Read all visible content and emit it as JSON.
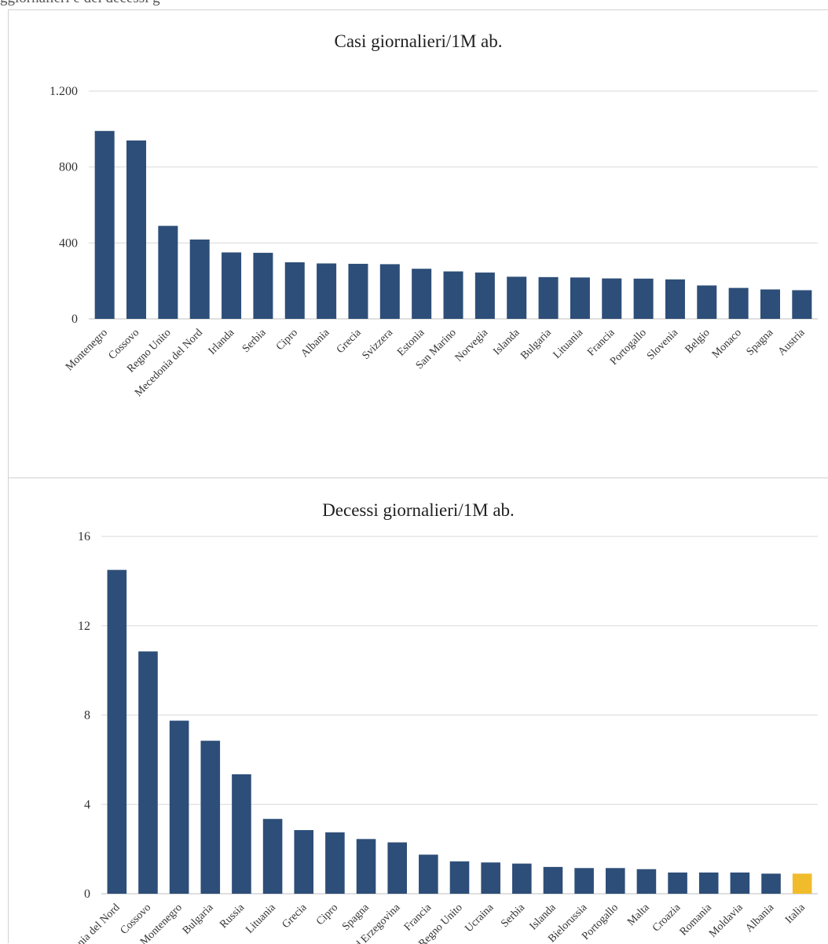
{
  "caption": "ggiornalieri e dei decessi g",
  "chart_data": [
    {
      "type": "bar",
      "title": "Casi giornalieri/1M ab.",
      "categories": [
        "Montenegro",
        "Cossovo",
        "Regno Unito",
        "Mecedonia del Nord",
        "Irlanda",
        "Serbia",
        "Cipro",
        "Albania",
        "Grecia",
        "Svizzera",
        "Estonia",
        "San Marino",
        "Norvegia",
        "Islanda",
        "Bulgaria",
        "Lituania",
        "Francia",
        "Portogallo",
        "Slovenia",
        "Belgio",
        "Monaco",
        "Spagna",
        "Austria"
      ],
      "values": [
        990,
        940,
        490,
        418,
        350,
        348,
        298,
        292,
        290,
        288,
        264,
        250,
        244,
        222,
        220,
        218,
        213,
        212,
        208,
        176,
        163,
        155,
        151
      ],
      "yticks": [
        0,
        400,
        800,
        1200
      ],
      "ytick_labels": [
        "0",
        "400",
        "800",
        "1.200"
      ],
      "ylim": [
        0,
        1200
      ],
      "grid": true,
      "bar_color": "#2d4e78"
    },
    {
      "type": "bar",
      "title": "Decessi giornalieri/1M ab.",
      "categories": [
        "Macedonia del Nord",
        "Cossovo",
        "Montenegro",
        "Bulgaria",
        "Russia",
        "Lituania",
        "Grecia",
        "Cipro",
        "Spagna",
        "Bosniaed Erzegovina",
        "Francia",
        "Regno Unito",
        "Ucraina",
        "Serbia",
        "Islanda",
        "Bielorussia",
        "Portogallo",
        "Malta",
        "Croazia",
        "Romania",
        "Moldavia",
        "Albania",
        "Italia"
      ],
      "values": [
        14.5,
        10.85,
        7.75,
        6.85,
        5.35,
        3.35,
        2.85,
        2.75,
        2.45,
        2.3,
        1.75,
        1.45,
        1.4,
        1.35,
        1.2,
        1.15,
        1.15,
        1.1,
        0.95,
        0.95,
        0.95,
        0.9,
        0.9
      ],
      "yticks": [
        0,
        4,
        8,
        12,
        16
      ],
      "ytick_labels": [
        "0",
        "4",
        "8",
        "12",
        "16"
      ],
      "ylim": [
        0,
        16
      ],
      "grid": true,
      "bar_color": "#2d4e78",
      "highlight": {
        "category": "Italia",
        "color": "#f0bc2c"
      }
    }
  ]
}
